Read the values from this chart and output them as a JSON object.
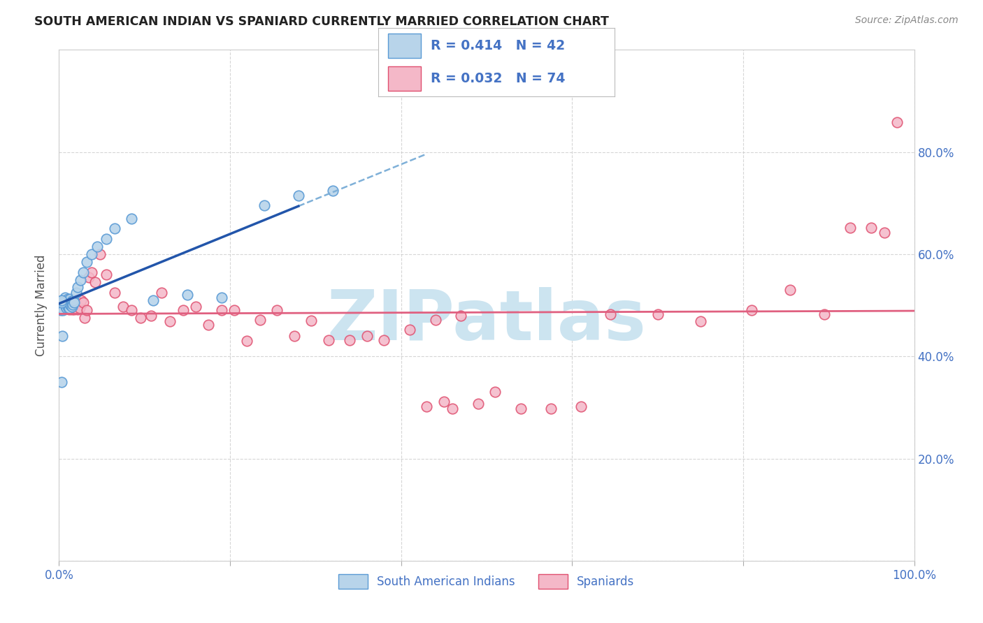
{
  "title": "SOUTH AMERICAN INDIAN VS SPANIARD CURRENTLY MARRIED CORRELATION CHART",
  "source": "Source: ZipAtlas.com",
  "ylabel": "Currently Married",
  "blue_color_face": "#b8d4ea",
  "blue_color_edge": "#5b9bd5",
  "pink_color_face": "#f4b8c8",
  "pink_color_edge": "#e05070",
  "blue_line_color": "#2255aa",
  "pink_line_color": "#e06080",
  "grid_color": "#cccccc",
  "title_color": "#222222",
  "axis_tick_color": "#4472c4",
  "ylabel_color": "#555555",
  "watermark_text": "ZIPatlas",
  "watermark_color": "#cce4f0",
  "legend_label_color": "#4472c4",
  "blue_scatter_x": [
    0.003,
    0.005,
    0.006,
    0.007,
    0.008,
    0.009,
    0.01,
    0.01,
    0.011,
    0.011,
    0.012,
    0.012,
    0.013,
    0.013,
    0.014,
    0.014,
    0.015,
    0.015,
    0.016,
    0.016,
    0.017,
    0.018,
    0.019,
    0.02,
    0.021,
    0.022,
    0.023,
    0.025,
    0.027,
    0.03,
    0.035,
    0.04,
    0.05,
    0.06,
    0.08,
    0.1,
    0.13,
    0.17,
    0.22,
    0.25,
    0.29,
    0.003
  ],
  "blue_scatter_y": [
    0.35,
    0.49,
    0.51,
    0.53,
    0.52,
    0.505,
    0.5,
    0.505,
    0.51,
    0.495,
    0.49,
    0.51,
    0.5,
    0.495,
    0.51,
    0.49,
    0.52,
    0.5,
    0.505,
    0.5,
    0.51,
    0.505,
    0.5,
    0.53,
    0.51,
    0.52,
    0.53,
    0.55,
    0.56,
    0.57,
    0.58,
    0.59,
    0.6,
    0.61,
    0.655,
    0.5,
    0.51,
    0.52,
    0.69,
    0.71,
    0.72,
    0.44
  ],
  "pink_scatter_x": [
    0.003,
    0.005,
    0.006,
    0.007,
    0.008,
    0.009,
    0.01,
    0.011,
    0.012,
    0.013,
    0.014,
    0.015,
    0.016,
    0.017,
    0.018,
    0.019,
    0.02,
    0.022,
    0.024,
    0.026,
    0.028,
    0.03,
    0.033,
    0.036,
    0.04,
    0.045,
    0.05,
    0.06,
    0.07,
    0.075,
    0.08,
    0.09,
    0.1,
    0.11,
    0.13,
    0.14,
    0.15,
    0.16,
    0.17,
    0.19,
    0.2,
    0.21,
    0.22,
    0.23,
    0.24,
    0.25,
    0.27,
    0.29,
    0.31,
    0.33,
    0.36,
    0.38,
    0.4,
    0.43,
    0.46,
    0.5,
    0.53,
    0.56,
    0.6,
    0.64,
    0.66,
    0.72,
    0.78,
    0.86,
    0.88,
    0.92,
    0.94,
    0.96,
    0.97,
    0.985,
    0.43,
    0.47,
    0.42,
    0.44
  ],
  "pink_scatter_y": [
    0.49,
    0.5,
    0.505,
    0.51,
    0.495,
    0.51,
    0.5,
    0.49,
    0.51,
    0.505,
    0.49,
    0.51,
    0.5,
    0.505,
    0.49,
    0.51,
    0.505,
    0.5,
    0.495,
    0.51,
    0.505,
    0.48,
    0.49,
    0.55,
    0.56,
    0.54,
    0.6,
    0.56,
    0.52,
    0.5,
    0.49,
    0.47,
    0.48,
    0.52,
    0.47,
    0.49,
    0.5,
    0.46,
    0.49,
    0.49,
    0.43,
    0.47,
    0.49,
    0.46,
    0.5,
    0.48,
    0.44,
    0.47,
    0.43,
    0.43,
    0.43,
    0.44,
    0.43,
    0.45,
    0.47,
    0.48,
    0.33,
    0.295,
    0.295,
    0.3,
    0.48,
    0.48,
    0.465,
    0.49,
    0.53,
    0.48,
    0.65,
    0.65,
    0.64,
    0.855,
    0.3,
    0.31,
    0.295,
    0.305
  ]
}
